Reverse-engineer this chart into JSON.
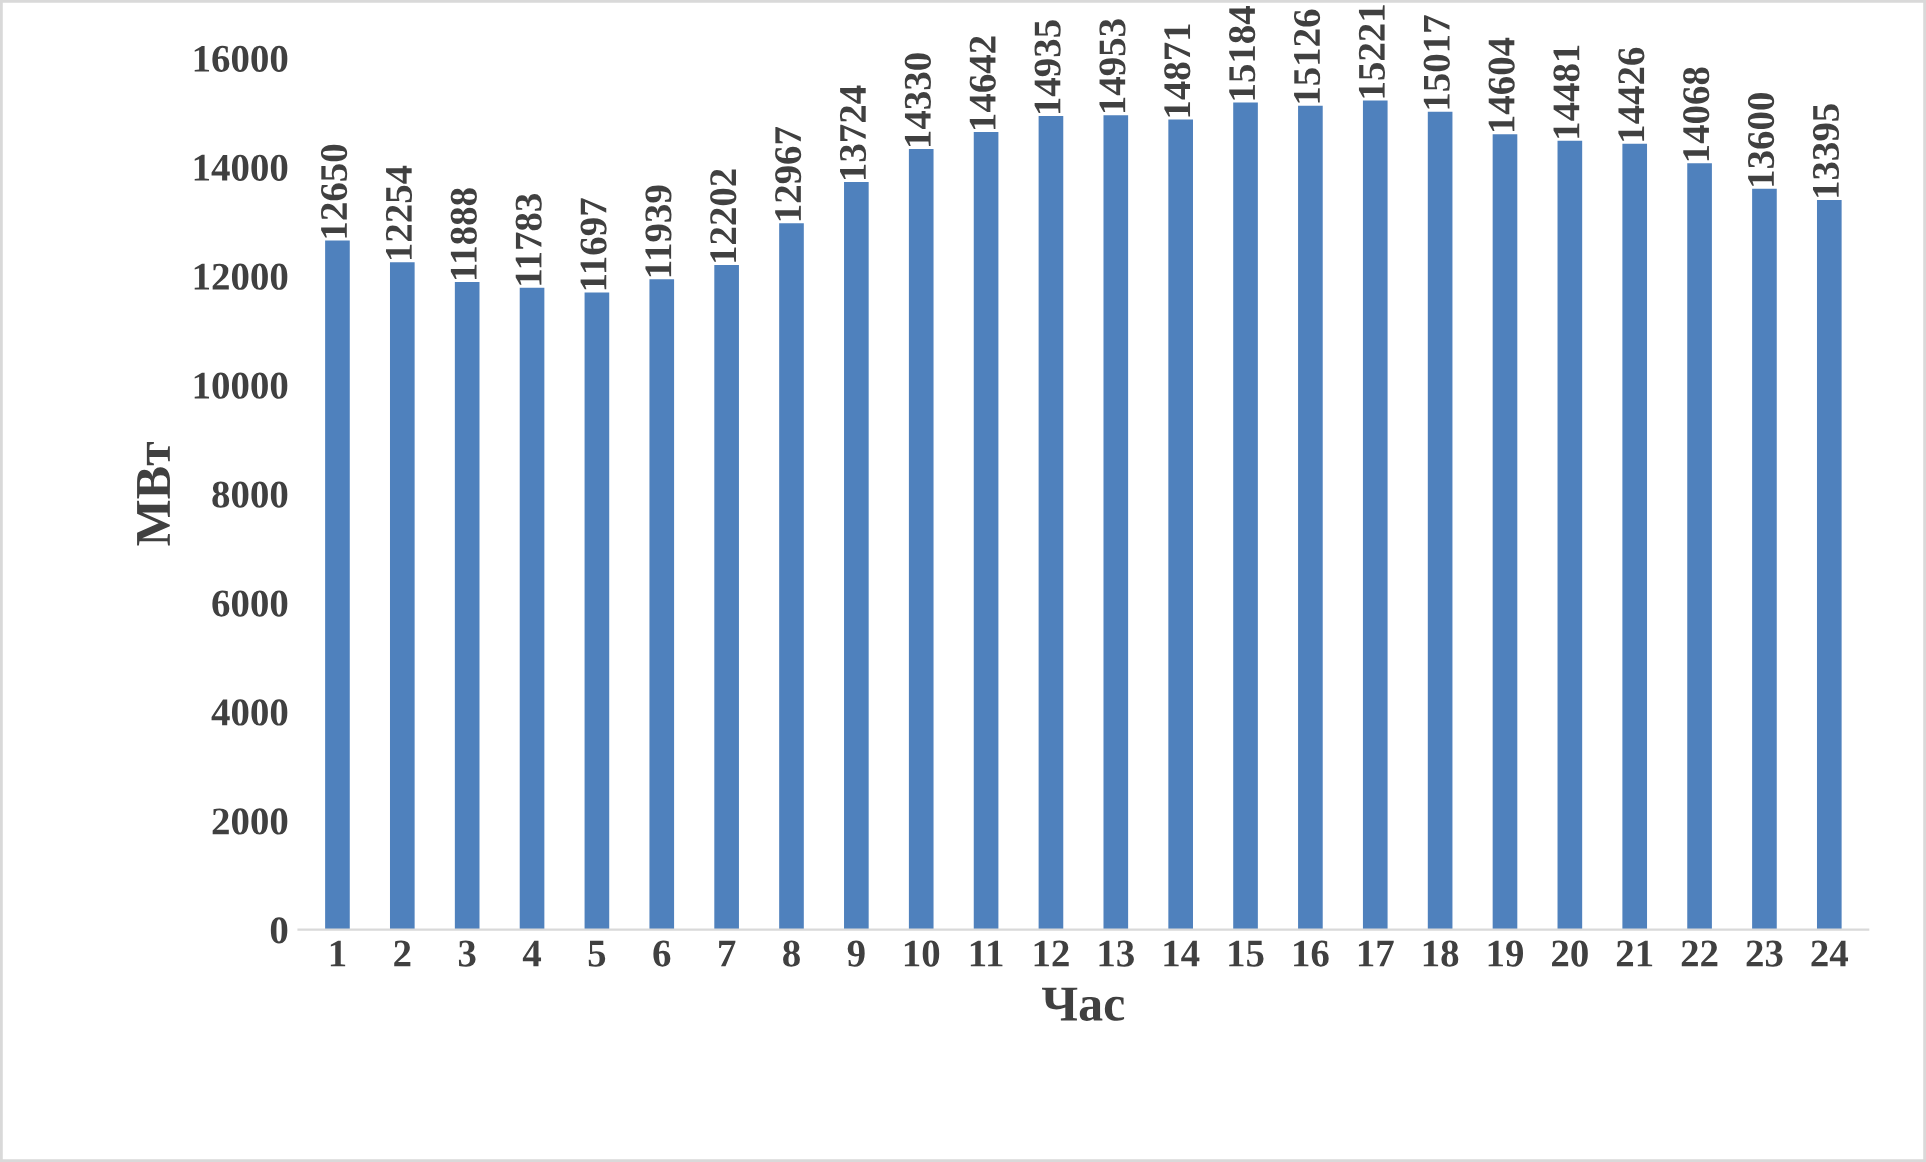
{
  "chart_data": {
    "type": "bar",
    "xlabel": "Час",
    "ylabel": "МВт",
    "categories": [
      "1",
      "2",
      "3",
      "4",
      "5",
      "6",
      "7",
      "8",
      "9",
      "10",
      "11",
      "12",
      "13",
      "14",
      "15",
      "16",
      "17",
      "18",
      "19",
      "20",
      "21",
      "22",
      "23",
      "24"
    ],
    "values": [
      12650,
      12254,
      11888,
      11783,
      11697,
      11939,
      12202,
      12967,
      13724,
      14330,
      14642,
      14935,
      14953,
      14871,
      15184,
      15126,
      15221,
      15017,
      14604,
      14481,
      14426,
      14068,
      13600,
      13395
    ],
    "color": "#4f81bd",
    "ylim": [
      0,
      16000
    ],
    "yticks": [
      0,
      2000,
      4000,
      6000,
      8000,
      10000,
      12000,
      14000,
      16000
    ],
    "grid": false,
    "legend": false,
    "data_labels": true
  }
}
